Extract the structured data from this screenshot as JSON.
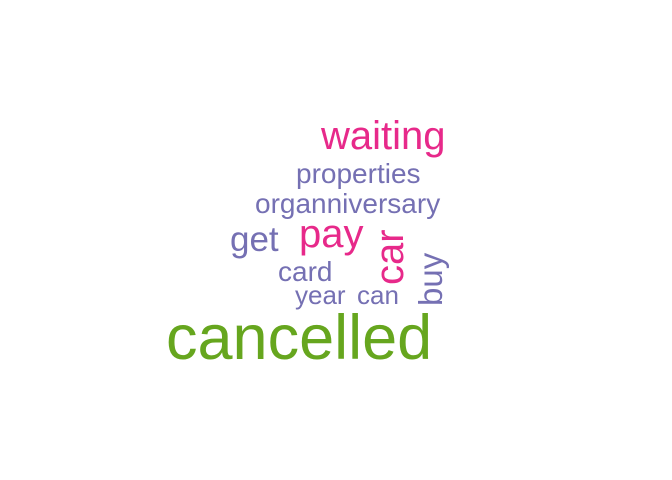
{
  "word_cloud": {
    "words": [
      {
        "text": "cancelled",
        "color": "#66a61e"
      },
      {
        "text": "waiting",
        "color": "#e7298a"
      },
      {
        "text": "pay",
        "color": "#e7298a"
      },
      {
        "text": "car",
        "color": "#e7298a"
      },
      {
        "text": "properties",
        "color": "#7570b3"
      },
      {
        "text": "organniversary",
        "color": "#7570b3"
      },
      {
        "text": "get",
        "color": "#7570b3"
      },
      {
        "text": "card",
        "color": "#7570b3"
      },
      {
        "text": "year",
        "color": "#7570b3"
      },
      {
        "text": "can",
        "color": "#7570b3"
      },
      {
        "text": "buy",
        "color": "#7570b3"
      }
    ]
  }
}
